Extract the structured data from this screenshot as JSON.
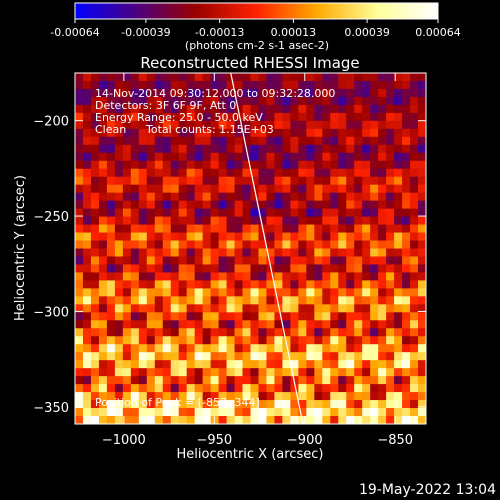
{
  "chart_data": {
    "type": "heatmap",
    "title": "Reconstructed RHESSI Image",
    "xlabel": "Heliocentric X (arcsec)",
    "ylabel": "Heliocentric Y (arcsec)",
    "xlim": [
      -1027,
      -833
    ],
    "ylim": [
      -359,
      -175
    ],
    "x_ticks": [
      -1000,
      -950,
      -900,
      -850
    ],
    "y_ticks": [
      -200,
      -250,
      -300,
      -350
    ],
    "colorbar": {
      "range": [
        -0.00064,
        0.00064
      ],
      "tick_values": [
        -0.00064,
        -0.00039,
        -0.00013,
        0.00013,
        0.00039,
        0.00064
      ],
      "tick_labels": [
        "-0.00064",
        "-0.00039",
        "-0.00013",
        "0.00013",
        "0.00039",
        "0.00064"
      ],
      "units_label": "(photons cm-2 s-1 asec-2)",
      "colors": [
        "#0000ff",
        "#4b0082",
        "#9a0000",
        "#ff2200",
        "#ffaa00",
        "#ffff99",
        "#ffffff"
      ]
    },
    "annotations": [
      "14-Nov-2014 09:30:12.000 to 09:32:28.000",
      "Detectors: 3F 6F 9F, Att 0",
      "Energy Range: 25.0 - 50.0 keV",
      "Clean",
      "Total counts: 1.15E+03"
    ],
    "peak_label": "Position of Peak = [-857,-344]",
    "limb_line": {
      "points": [
        [
          -942,
          -170
        ],
        [
          -901,
          -359
        ]
      ]
    }
  },
  "footer": {
    "date": "19-May-2022 13:04"
  }
}
